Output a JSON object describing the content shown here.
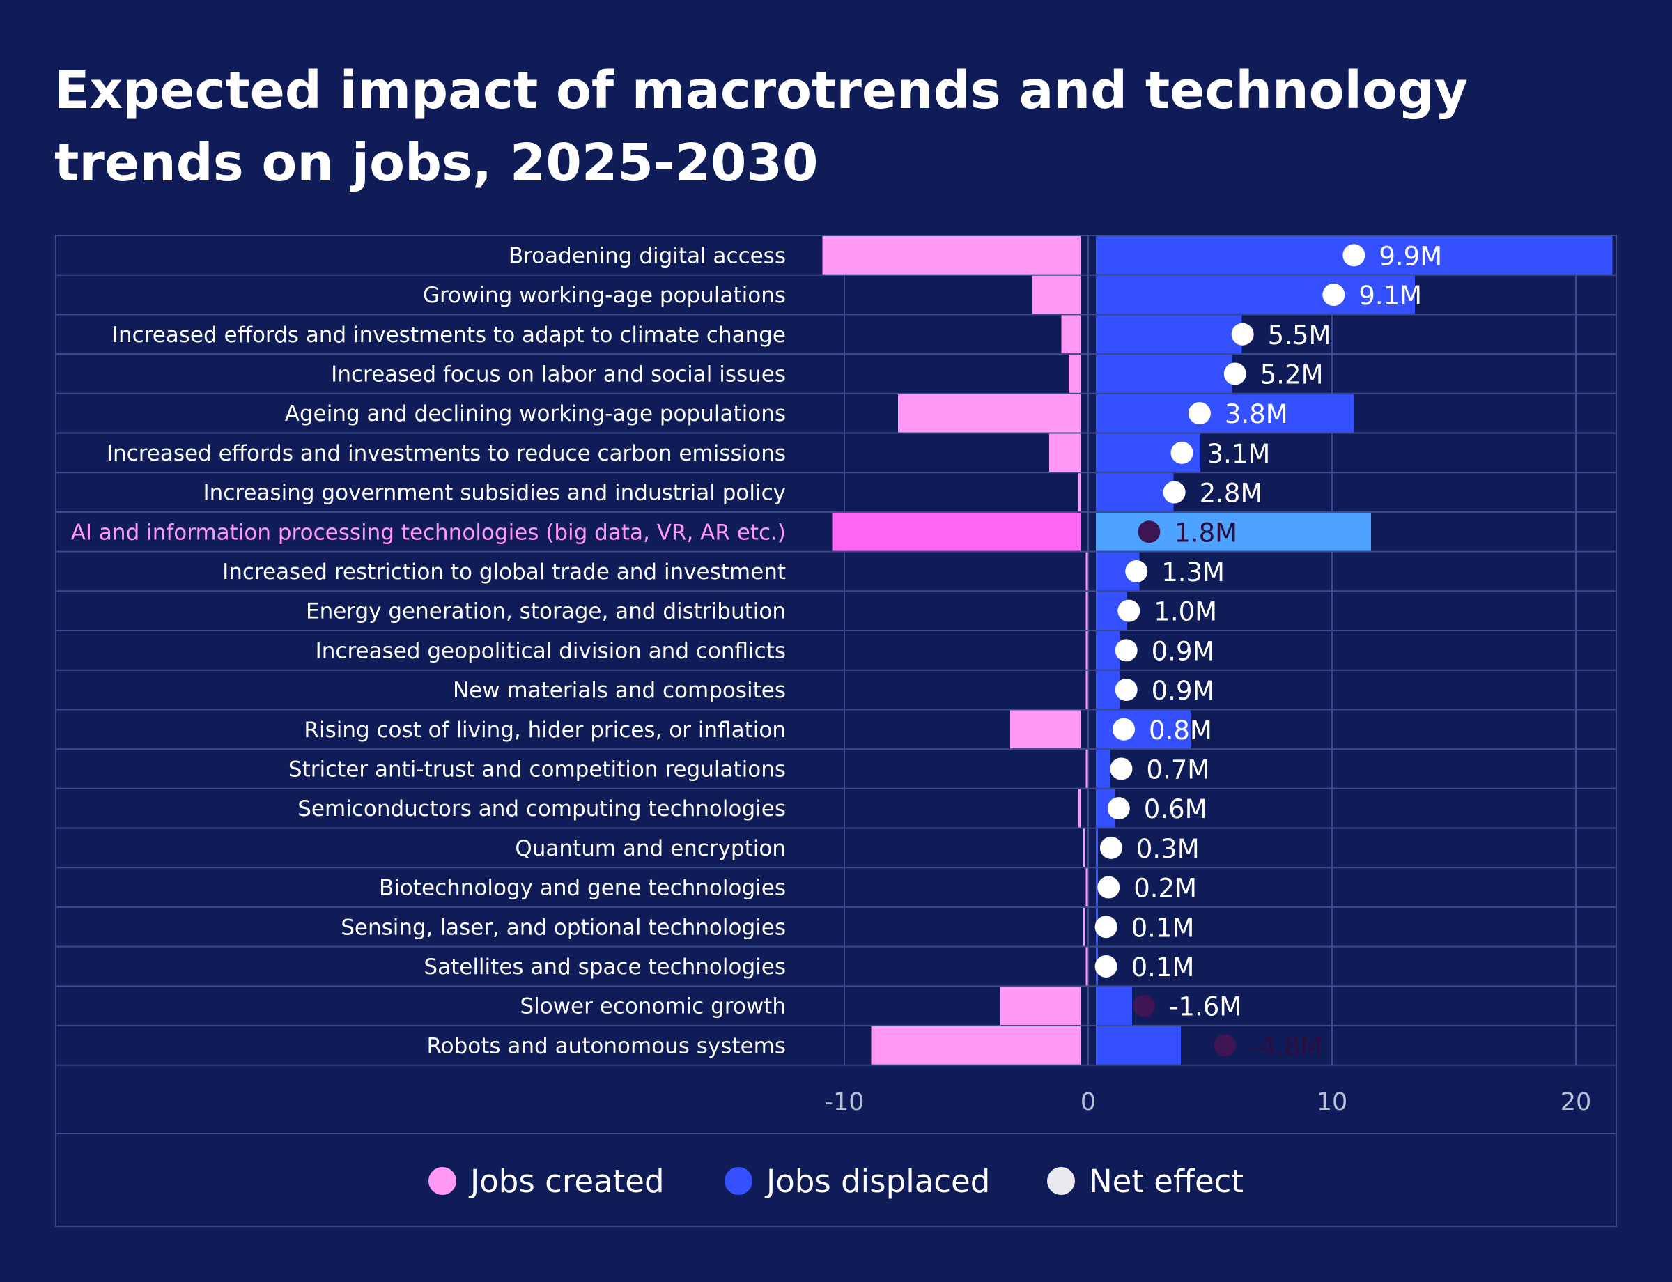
{
  "chart_data": {
    "type": "bar",
    "title": "Expected impact of macrotrends and technology trends on jobs, 2025-2030",
    "xlabel": "",
    "ylabel": "",
    "xlim": [
      -11,
      21
    ],
    "xticks": [
      "-10",
      "0",
      "10",
      "20"
    ],
    "xtick_values": [
      -10,
      0,
      10,
      20
    ],
    "grid": true,
    "highlight_index": 7,
    "categories": [
      "Broadening digital access",
      "Growing working-age populations",
      "Increased effords and investments to adapt to climate change",
      "Increased focus on labor and social issues",
      "Ageing and declining working-age populations",
      "Increased effords and investments to reduce carbon emissions",
      "Increasing government subsidies and industrial policy",
      "AI and information processing technologies (big data, VR, AR etc.)",
      "Increased restriction to global trade and investment",
      "Energy generation, storage, and distribution",
      "Increased geopolitical division and conflicts",
      "New materials and composites",
      "Rising cost of living, hider prices, or inflation",
      "Stricter anti-trust and competition regulations",
      "Semiconductors and computing technologies",
      "Quantum and encryption",
      "Biotechnology and gene technologies",
      "Sensing, laser, and optional technologies",
      "Satellites and space technologies",
      "Slower economic growth",
      "Robots and autonomous systems"
    ],
    "series": [
      {
        "name": "Jobs created",
        "color": "#ff99f5",
        "values": [
          -10.9,
          -2.3,
          -1.1,
          -0.8,
          -7.8,
          -1.6,
          -0.4,
          -10.5,
          -0.1,
          -0.1,
          -0.1,
          -0.1,
          -3.2,
          -0.1,
          -0.4,
          -0.2,
          -0.1,
          -0.2,
          -0.1,
          -3.6,
          -8.9
        ]
      },
      {
        "name": "Jobs displaced",
        "color": "#3551ff",
        "values": [
          21.5,
          13.4,
          6.3,
          5.9,
          10.9,
          4.6,
          3.5,
          11.6,
          2.1,
          1.6,
          1.3,
          1.3,
          4.2,
          0.9,
          1.1,
          0.4,
          0.4,
          0.2,
          0.2,
          1.8,
          3.8
        ]
      },
      {
        "name": "Net effect",
        "color": "#ffffff",
        "values": [
          9.9,
          9.1,
          5.5,
          5.2,
          3.8,
          3.1,
          2.8,
          1.8,
          1.3,
          1.0,
          0.9,
          0.9,
          0.8,
          0.7,
          0.6,
          0.3,
          0.2,
          0.1,
          0.1,
          -1.6,
          -4.8
        ],
        "labels": [
          "9.9M",
          "9.1M",
          "5.5M",
          "5.2M",
          "3.8M",
          "3.1M",
          "2.8M",
          "1.8M",
          "1.3M",
          "1.0M",
          "0.9M",
          "0.9M",
          "0.8M",
          "0.7M",
          "0.6M",
          "0.3M",
          "0.2M",
          "0.1M",
          "0.1M",
          "-1.6M",
          "-4.8M"
        ]
      }
    ],
    "legend": {
      "position": "bottom-center",
      "entries": [
        {
          "label": "Jobs created",
          "color": "#ff99f5"
        },
        {
          "label": "Jobs displaced",
          "color": "#3551ff"
        },
        {
          "label": "Net effect",
          "color": "#e9e9ef"
        }
      ]
    }
  },
  "colors": {
    "background": "#101c57",
    "grid": "#3a4a8a",
    "text": "#ffffff",
    "tick_text": "#b7bfdc",
    "highlight_label": "#ff99f5",
    "highlight_created": "#ff66f2",
    "highlight_displaced": "#4da3ff",
    "dark_dot": "#3d1552",
    "dark_text": "#2a0e40"
  }
}
